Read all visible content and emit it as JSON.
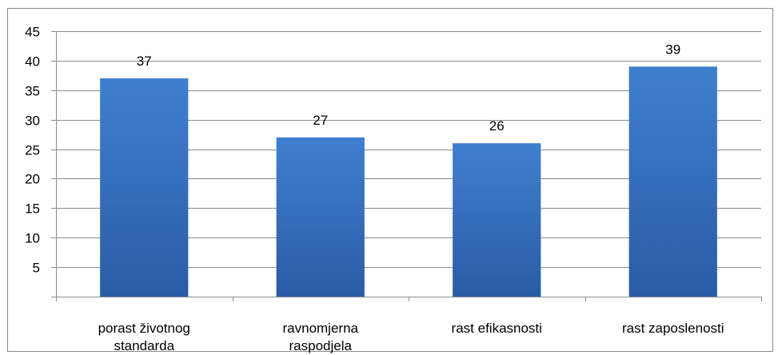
{
  "chart_data": {
    "type": "bar",
    "categories": [
      [
        "porast životnog",
        "standarda"
      ],
      [
        "ravnomjerna",
        "raspodjela"
      ],
      [
        "rast efikasnosti"
      ],
      [
        "rast zaposlenosti"
      ]
    ],
    "values": [
      37,
      27,
      26,
      39
    ],
    "data_labels": [
      "37",
      "27",
      "26",
      "39"
    ],
    "ylim": [
      0,
      45
    ],
    "yticks": [
      5,
      10,
      15,
      20,
      25,
      30,
      35,
      40,
      45
    ],
    "grid": true,
    "legend": "none",
    "colors": {
      "bar_top": "#3f7fcf",
      "bar_bottom": "#2a5ca6",
      "gridline": "#8c8c8c",
      "axis": "#8c8c8c",
      "text": "#000000"
    }
  }
}
